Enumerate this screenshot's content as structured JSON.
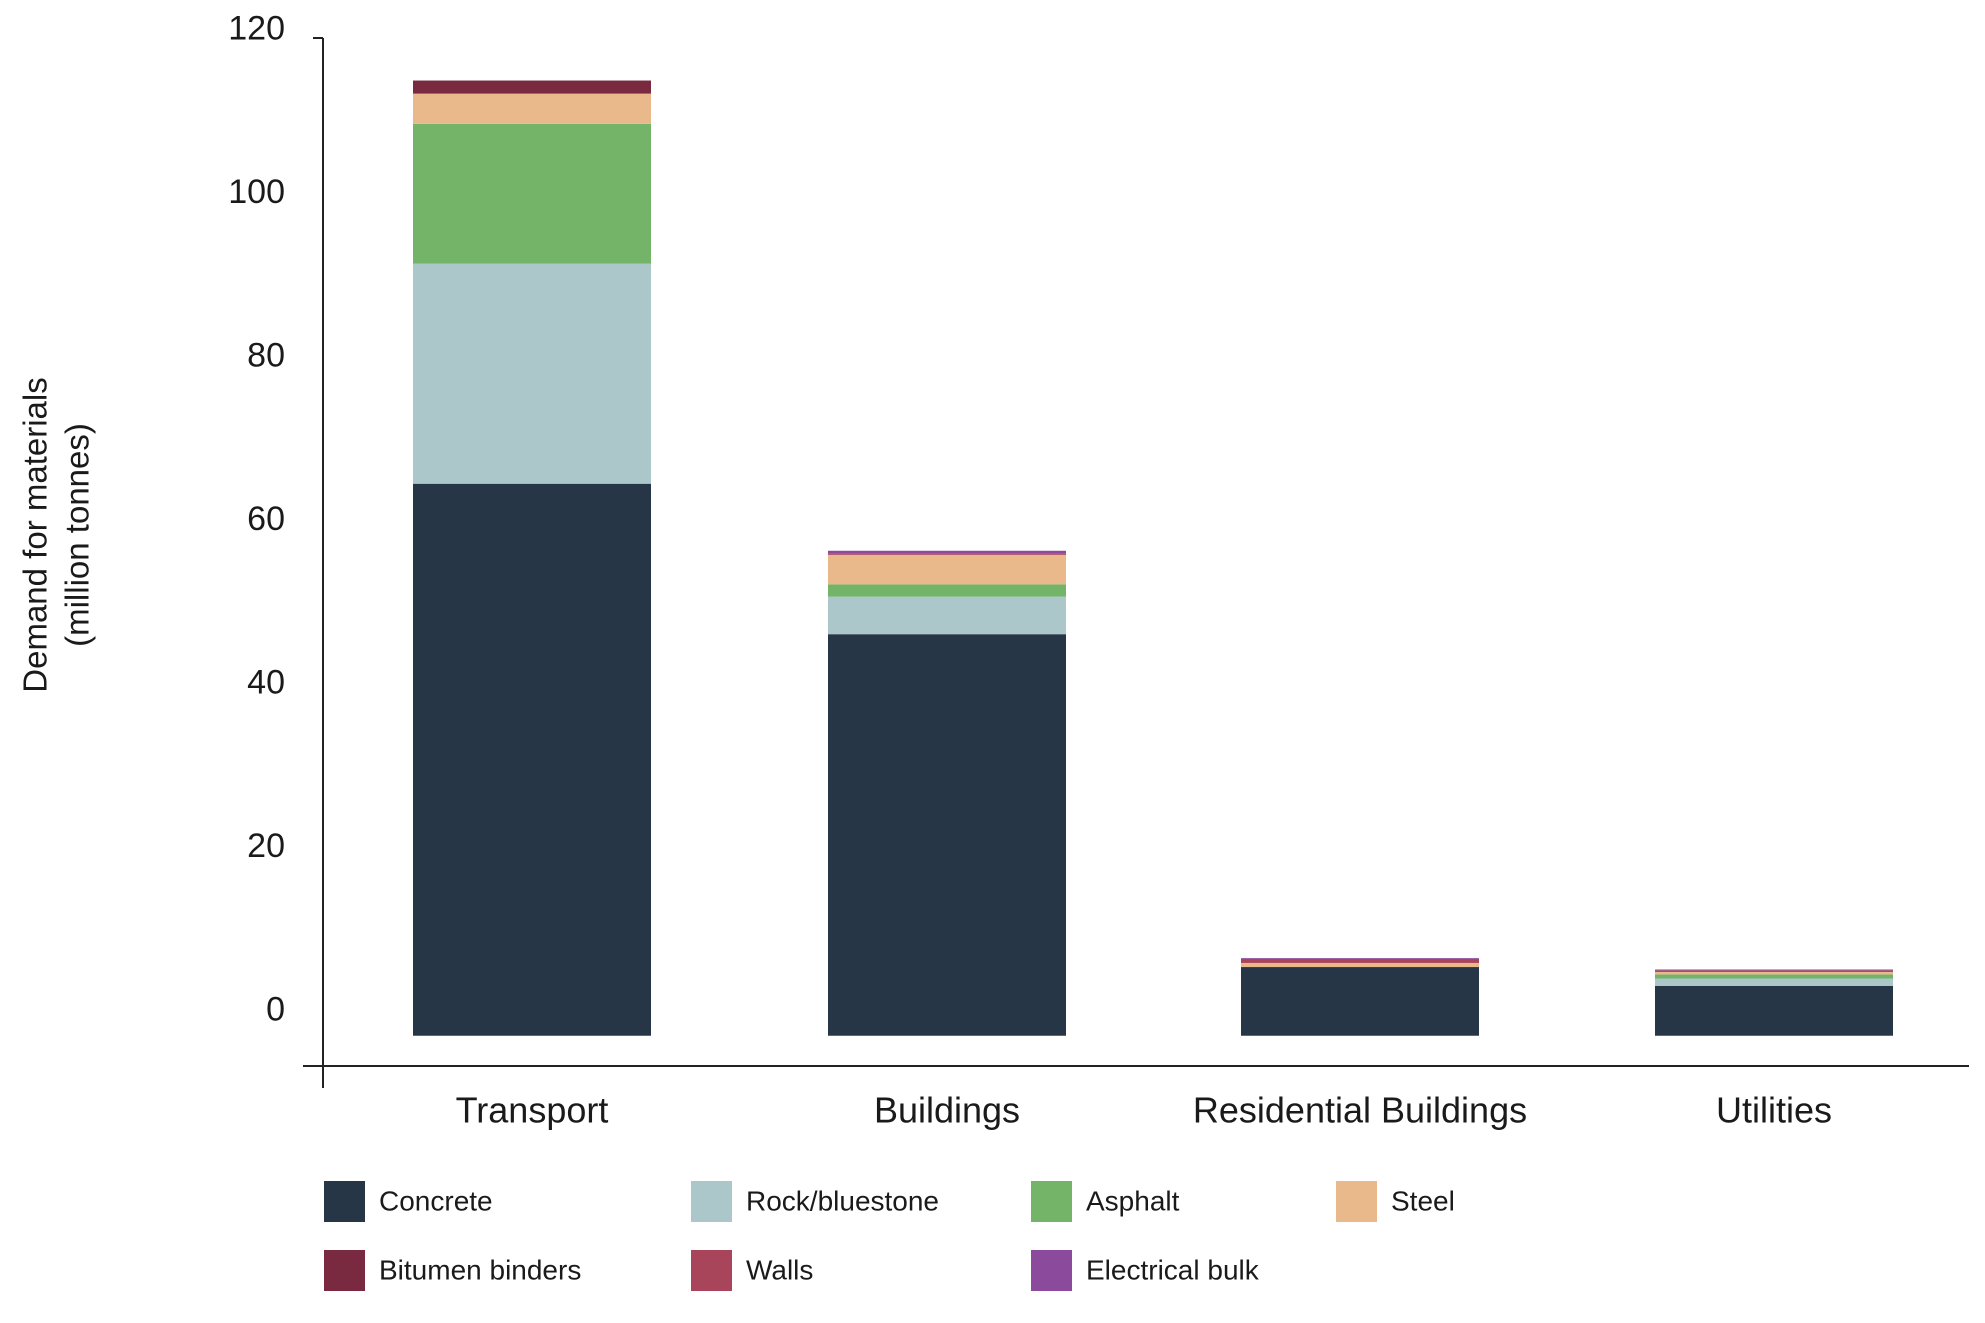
{
  "chart_data": {
    "type": "stacked_bar",
    "y_label": [
      "Demand for materials",
      "(million tonnes)"
    ],
    "categories": [
      "Transport",
      "Buildings",
      "Residential Buildings",
      "Utilities"
    ],
    "series": [
      {
        "name": "Concrete",
        "color": "#263646",
        "values": [
          67.5,
          49.1,
          8.4,
          6.1
        ]
      },
      {
        "name": "Rock/bluestone",
        "color": "#acc7ca",
        "values": [
          26.9,
          4.6,
          0,
          0.9
        ]
      },
      {
        "name": "Asphalt",
        "color": "#74b468",
        "values": [
          17.1,
          1.5,
          0,
          0.5
        ]
      },
      {
        "name": "Steel",
        "color": "#e9b98c",
        "values": [
          3.7,
          3.6,
          0.5,
          0.3
        ]
      },
      {
        "name": "Bitumen binders",
        "color": "#7a2a40",
        "values": [
          1.6,
          0,
          0,
          0
        ]
      },
      {
        "name": "Walls",
        "color": "#a8455a",
        "values": [
          0,
          0.2,
          0.5,
          0.2
        ]
      },
      {
        "name": "Electrical bulk",
        "color": "#8b4a9b",
        "values": [
          0,
          0.3,
          0.1,
          0.1
        ]
      }
    ],
    "ylim": [
      -3.7,
      122
    ],
    "yticks": [
      0,
      20,
      40,
      60,
      80,
      100,
      120
    ]
  }
}
